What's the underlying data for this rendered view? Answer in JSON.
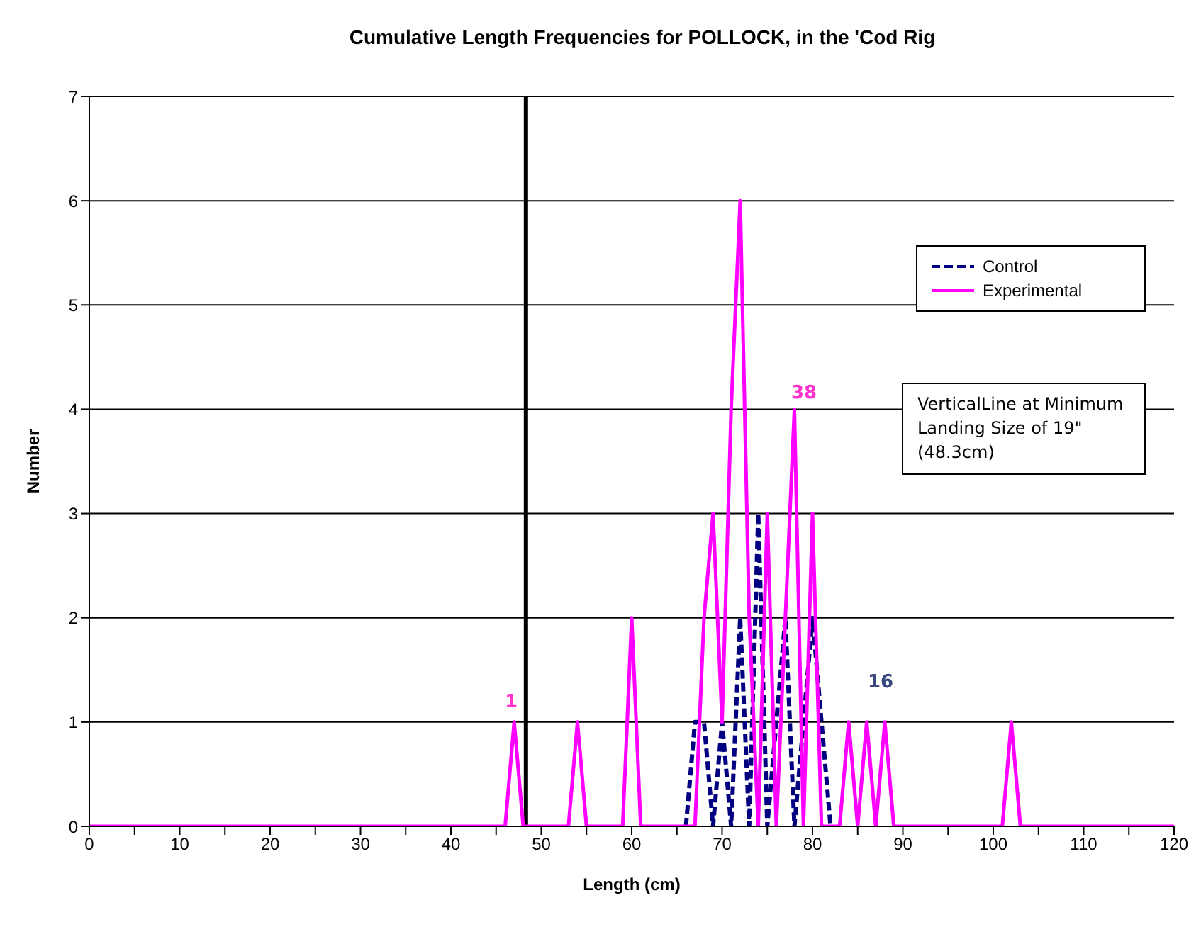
{
  "chart_data": {
    "type": "line",
    "title": "Cumulative Length Frequencies for POLLOCK, in the 'Cod Rig",
    "xlabel": "Length (cm)",
    "ylabel": "Number",
    "x": [
      0,
      1,
      2,
      3,
      4,
      5,
      6,
      7,
      8,
      9,
      10,
      11,
      12,
      13,
      14,
      15,
      16,
      17,
      18,
      19,
      20,
      21,
      22,
      23,
      24,
      25,
      26,
      27,
      28,
      29,
      30,
      31,
      32,
      33,
      34,
      35,
      36,
      37,
      38,
      39,
      40,
      41,
      42,
      43,
      44,
      45,
      46,
      47,
      48,
      49,
      50,
      51,
      52,
      53,
      54,
      55,
      56,
      57,
      58,
      59,
      60,
      61,
      62,
      63,
      64,
      65,
      66,
      67,
      68,
      69,
      70,
      71,
      72,
      73,
      74,
      75,
      76,
      77,
      78,
      79,
      80,
      81,
      82,
      83,
      84,
      85,
      86,
      87,
      88,
      89,
      90,
      91,
      92,
      93,
      94,
      95,
      96,
      97,
      98,
      99,
      100,
      101,
      102,
      103,
      104,
      105,
      106,
      107,
      108,
      109,
      110,
      111,
      112,
      113,
      114,
      115,
      116,
      117,
      118,
      119,
      120
    ],
    "series": [
      {
        "name": "Control",
        "color": "#000080",
        "line_style": "dashed",
        "values": [
          null,
          null,
          null,
          null,
          null,
          null,
          null,
          null,
          null,
          null,
          null,
          null,
          null,
          null,
          null,
          null,
          null,
          null,
          null,
          null,
          null,
          null,
          null,
          null,
          null,
          null,
          null,
          null,
          null,
          null,
          null,
          null,
          null,
          null,
          null,
          null,
          null,
          null,
          null,
          null,
          null,
          null,
          null,
          null,
          null,
          null,
          null,
          null,
          null,
          null,
          null,
          null,
          null,
          null,
          null,
          null,
          null,
          null,
          null,
          null,
          null,
          null,
          null,
          null,
          null,
          null,
          0,
          1,
          1,
          0,
          1,
          0,
          2,
          0,
          3,
          0,
          1,
          2,
          0,
          1,
          2,
          1,
          0,
          null,
          null,
          null,
          null,
          null,
          null,
          null,
          null,
          null,
          null,
          null,
          null,
          null,
          null,
          null,
          null,
          null,
          null,
          null,
          null,
          null,
          null,
          null,
          null,
          null,
          null,
          null,
          null,
          null,
          null,
          null,
          null,
          null,
          null,
          null,
          null,
          null,
          null
        ]
      },
      {
        "name": "Experimental",
        "color": "#ff00ff",
        "line_style": "solid",
        "values": [
          0,
          0,
          0,
          0,
          0,
          0,
          0,
          0,
          0,
          0,
          0,
          0,
          0,
          0,
          0,
          0,
          0,
          0,
          0,
          0,
          0,
          0,
          0,
          0,
          0,
          0,
          0,
          0,
          0,
          0,
          0,
          0,
          0,
          0,
          0,
          0,
          0,
          0,
          0,
          0,
          0,
          0,
          0,
          0,
          0,
          0,
          0,
          1,
          0,
          0,
          0,
          0,
          0,
          0,
          1,
          0,
          0,
          0,
          0,
          0,
          2,
          0,
          0,
          0,
          0,
          0,
          0,
          0,
          2,
          3,
          1,
          4,
          6,
          2,
          0,
          3,
          0,
          2,
          4,
          0,
          3,
          0,
          0,
          0,
          1,
          0,
          1,
          0,
          1,
          0,
          0,
          0,
          0,
          0,
          0,
          0,
          0,
          0,
          0,
          0,
          0,
          0,
          1,
          0,
          0,
          0,
          0,
          0,
          0,
          0,
          0,
          0,
          0,
          0,
          0,
          0,
          0,
          0,
          0,
          0,
          0
        ]
      }
    ],
    "xlim": [
      0,
      120
    ],
    "xticks": [
      0,
      {
        "value": 5,
        "label": null
      },
      10,
      {
        "value": 15,
        "label": null
      },
      20,
      {
        "value": 25,
        "label": null
      },
      30,
      {
        "value": 35,
        "label": null
      },
      40,
      {
        "value": 45,
        "label": null
      },
      50,
      {
        "value": 55,
        "label": null
      },
      60,
      {
        "value": 65,
        "label": null
      },
      70,
      {
        "value": 75,
        "label": null
      },
      80,
      {
        "value": 85,
        "label": null
      },
      90,
      {
        "value": 95,
        "label": null
      },
      100,
      {
        "value": 105,
        "label": null
      },
      110,
      {
        "value": 115,
        "label": null
      },
      120
    ],
    "ylim": [
      0,
      7
    ],
    "yticks": [
      0,
      1,
      2,
      3,
      4,
      5,
      6,
      7
    ],
    "grid": "y",
    "legend": "top right",
    "marker": "none",
    "ref_lines": [
      {
        "axis": "x",
        "value": 48.3,
        "color": "#000000"
      }
    ],
    "annotations": [
      "1",
      "38",
      "16",
      "VerticalLine at Minimum Landing Size of 19\" (48.3cm)"
    ]
  }
}
